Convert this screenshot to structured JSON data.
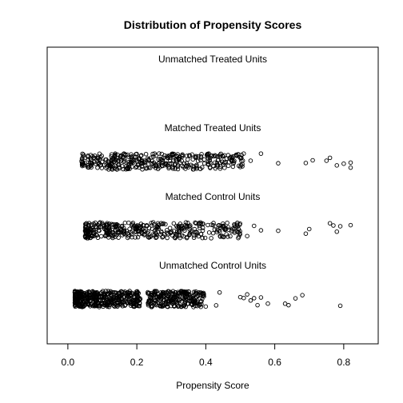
{
  "chart_data": {
    "type": "scatter",
    "title": "Distribution of Propensity Scores",
    "xlabel": "Propensity Score",
    "ylabel": "",
    "xlim": [
      -0.06,
      0.9
    ],
    "x_ticks": [
      "0.0",
      "0.2",
      "0.4",
      "0.6",
      "0.8"
    ],
    "x_tick_values": [
      0.0,
      0.2,
      0.4,
      0.6,
      0.8
    ],
    "grid": false,
    "marker": "open-circle",
    "jitter": true,
    "series": [
      {
        "name": "Unmatched Treated Units",
        "order": 1,
        "points": []
      },
      {
        "name": "Matched Treated Units",
        "order": 2,
        "dense_range": [
          0.04,
          0.51
        ],
        "density": 0.55,
        "outliers": [
          0.53,
          0.56,
          0.61,
          0.69,
          0.71,
          0.75,
          0.76,
          0.78,
          0.8,
          0.82,
          0.82
        ]
      },
      {
        "name": "Matched Control Units",
        "order": 3,
        "dense_range": [
          0.05,
          0.5
        ],
        "density": 0.55,
        "outliers": [
          0.52,
          0.54,
          0.56,
          0.61,
          0.69,
          0.7,
          0.76,
          0.77,
          0.78,
          0.79,
          0.82
        ]
      },
      {
        "name": "Unmatched Control Units",
        "order": 4,
        "dense_range": [
          0.02,
          0.4
        ],
        "density": 1.0,
        "gap": [
          0.21,
          0.23
        ],
        "outliers": [
          0.43,
          0.44,
          0.5,
          0.51,
          0.52,
          0.53,
          0.54,
          0.55,
          0.56,
          0.58,
          0.63,
          0.64,
          0.66,
          0.68,
          0.79
        ]
      }
    ]
  }
}
